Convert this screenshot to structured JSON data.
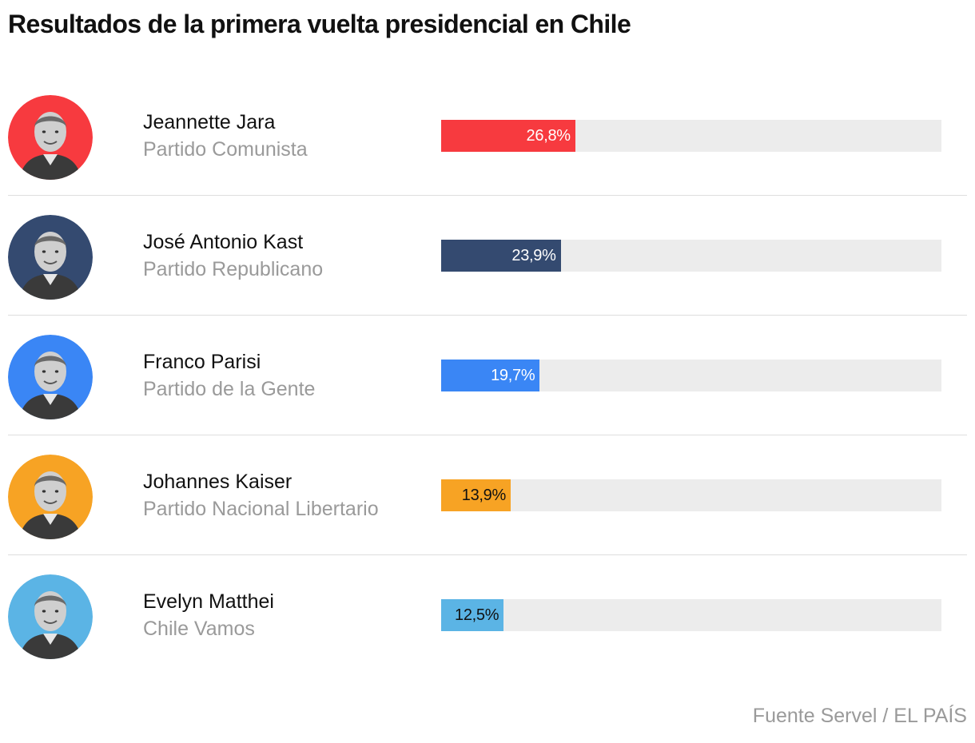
{
  "title": "Resultados de la primera vuelta presidencial en Chile",
  "source": "Fuente Servel / EL PAÍS",
  "chart_data": {
    "type": "bar",
    "orientation": "horizontal",
    "title": "Resultados de la primera vuelta presidencial en Chile",
    "xlabel": "",
    "ylabel": "",
    "xlim": [
      0,
      100
    ],
    "grid": false,
    "categories": [
      "Jeannette Jara",
      "José Antonio Kast",
      "Franco Parisi",
      "Johannes Kaiser",
      "Evelyn Matthei"
    ],
    "values": [
      26.8,
      23.9,
      19.7,
      13.9,
      12.5
    ],
    "candidates": [
      {
        "name": "Jeannette Jara",
        "party": "Partido Comunista",
        "value": 26.8,
        "value_label": "26,8%",
        "color": "#f73a3f",
        "label_color": "#ffffff",
        "avatar_icon": "candidate-portrait-icon"
      },
      {
        "name": "José Antonio Kast",
        "party": "Partido Republicano",
        "value": 23.9,
        "value_label": "23,9%",
        "color": "#344a70",
        "label_color": "#ffffff",
        "avatar_icon": "candidate-portrait-icon"
      },
      {
        "name": "Franco Parisi",
        "party": "Partido de la Gente",
        "value": 19.7,
        "value_label": "19,7%",
        "color": "#3a86f5",
        "label_color": "#ffffff",
        "avatar_icon": "candidate-portrait-icon"
      },
      {
        "name": "Johannes Kaiser",
        "party": "Partido Nacional Libertario",
        "value": 13.9,
        "value_label": "13,9%",
        "color": "#f7a324",
        "label_color": "#111111",
        "avatar_icon": "candidate-portrait-icon"
      },
      {
        "name": "Evelyn Matthei",
        "party": "Chile Vamos",
        "value": 12.5,
        "value_label": "12,5%",
        "color": "#5bb4e5",
        "label_color": "#111111",
        "avatar_icon": "candidate-portrait-icon"
      }
    ],
    "track_color": "#ececec"
  }
}
